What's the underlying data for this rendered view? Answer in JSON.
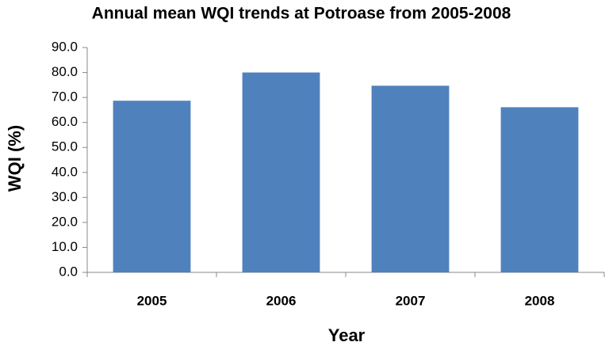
{
  "chart_data": {
    "type": "bar",
    "title": "Annual mean WQI trends at Potroase from 2005-2008",
    "y_label": "WQI (%)",
    "x_label": "Year",
    "categories": [
      "2005",
      "2006",
      "2007",
      "2008"
    ],
    "values": [
      68.7,
      80.0,
      74.7,
      66.1
    ],
    "color": "#4f81bd",
    "ylim": [
      0,
      90
    ],
    "yticks": [
      {
        "value": 0,
        "label": "0.0"
      },
      {
        "value": 10,
        "label": "10.0"
      },
      {
        "value": 20,
        "label": "20.0"
      },
      {
        "value": 30,
        "label": "30.0"
      },
      {
        "value": 40,
        "label": "40.0"
      },
      {
        "value": 50,
        "label": "50.0"
      },
      {
        "value": 60,
        "label": "60.0"
      },
      {
        "value": 70,
        "label": "70.0"
      },
      {
        "value": 80,
        "label": "80.0"
      },
      {
        "value": 90,
        "label": "90.0"
      }
    ],
    "grid": false
  }
}
